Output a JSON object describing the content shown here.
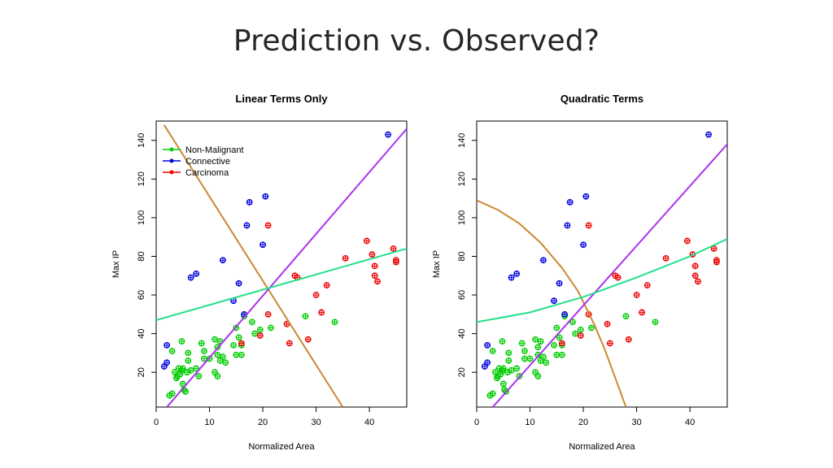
{
  "slide": {
    "title": "Prediction vs. Observed?"
  },
  "chart_data": [
    {
      "type": "scatter",
      "title": "Linear Terms Only",
      "xlabel": "Normalized Area",
      "ylabel": "Max IP",
      "xlim": [
        0,
        47
      ],
      "ylim": [
        2,
        150
      ],
      "x_ticks": [
        0,
        10,
        20,
        30,
        40
      ],
      "y_ticks": [
        20,
        40,
        60,
        80,
        100,
        120,
        140
      ],
      "legend_position": "top-left",
      "grid": false,
      "colors": {
        "Non-Malignant": "#00cc00",
        "Connective": "#0000dd",
        "Carcinoma": "#ee0000"
      },
      "series": [
        {
          "name": "Non-Malignant",
          "color": "#00cc00",
          "points": [
            [
              2.5,
              8
            ],
            [
              3,
              9
            ],
            [
              3.5,
              20
            ],
            [
              3.8,
              17
            ],
            [
              4,
              18
            ],
            [
              4.2,
              22
            ],
            [
              4.5,
              19
            ],
            [
              4.8,
              21
            ],
            [
              5,
              14
            ],
            [
              5.2,
              11
            ],
            [
              5.5,
              10
            ],
            [
              5.8,
              20
            ],
            [
              5,
              22
            ],
            [
              3,
              31
            ],
            [
              4.8,
              36
            ],
            [
              6,
              26
            ],
            [
              6,
              30
            ],
            [
              6.5,
              21
            ],
            [
              7.5,
              22
            ],
            [
              8,
              18
            ],
            [
              8.5,
              35
            ],
            [
              9,
              27
            ],
            [
              9,
              31
            ],
            [
              10,
              27
            ],
            [
              11,
              37
            ],
            [
              11,
              20
            ],
            [
              11.5,
              18
            ],
            [
              11.5,
              33
            ],
            [
              11.5,
              29
            ],
            [
              12,
              26
            ],
            [
              12,
              36
            ],
            [
              12.5,
              28
            ],
            [
              13,
              25
            ],
            [
              14.5,
              34
            ],
            [
              15,
              43
            ],
            [
              15,
              29
            ],
            [
              15.5,
              38
            ],
            [
              16,
              34
            ],
            [
              16,
              29
            ],
            [
              16.5,
              49
            ],
            [
              18,
              46
            ],
            [
              18.5,
              40
            ],
            [
              19.5,
              42
            ],
            [
              21.5,
              43
            ],
            [
              28,
              49
            ],
            [
              33.5,
              46
            ]
          ]
        },
        {
          "name": "Connective",
          "color": "#0000dd",
          "points": [
            [
              1.5,
              23
            ],
            [
              2,
              25
            ],
            [
              2,
              34
            ],
            [
              6.5,
              69
            ],
            [
              7.5,
              71
            ],
            [
              12.5,
              78
            ],
            [
              14.5,
              57
            ],
            [
              15.5,
              66
            ],
            [
              16.5,
              50
            ],
            [
              17,
              96
            ],
            [
              17.5,
              108
            ],
            [
              20,
              86
            ],
            [
              20.5,
              111
            ],
            [
              43.5,
              143
            ]
          ]
        },
        {
          "name": "Carcinoma",
          "color": "#ee0000",
          "points": [
            [
              16,
              35
            ],
            [
              19.5,
              39
            ],
            [
              21,
              50
            ],
            [
              21,
              96
            ],
            [
              24.5,
              45
            ],
            [
              25,
              35
            ],
            [
              26,
              70
            ],
            [
              26.5,
              69
            ],
            [
              28.5,
              37
            ],
            [
              30,
              60
            ],
            [
              31,
              51
            ],
            [
              32,
              65
            ],
            [
              35.5,
              79
            ],
            [
              39.5,
              88
            ],
            [
              40.5,
              81
            ],
            [
              41,
              75
            ],
            [
              41,
              70
            ],
            [
              41.5,
              67
            ],
            [
              44.5,
              84
            ],
            [
              45,
              77
            ],
            [
              45,
              78
            ]
          ]
        }
      ],
      "lines": [
        {
          "color": "#cc8833",
          "points": [
            [
              1.5,
              148
            ],
            [
              35,
              2
            ]
          ]
        },
        {
          "color": "#aa33ee",
          "points": [
            [
              2,
              2
            ],
            [
              47,
              146
            ]
          ]
        },
        {
          "color": "#22e08a",
          "points": [
            [
              0,
              47
            ],
            [
              47,
              84
            ]
          ]
        }
      ]
    },
    {
      "type": "scatter",
      "title": "Quadratic Terms",
      "xlabel": "Normalized Area",
      "ylabel": "Max IP",
      "xlim": [
        0,
        47
      ],
      "ylim": [
        2,
        150
      ],
      "x_ticks": [
        0,
        10,
        20,
        30,
        40
      ],
      "y_ticks": [
        20,
        40,
        60,
        80,
        100,
        120,
        140
      ],
      "legend_position": "none",
      "grid": false,
      "series": [
        {
          "name": "Non-Malignant",
          "color": "#00cc00",
          "points": [
            [
              2.5,
              8
            ],
            [
              3,
              9
            ],
            [
              3.5,
              20
            ],
            [
              3.8,
              17
            ],
            [
              4,
              18
            ],
            [
              4.2,
              22
            ],
            [
              4.5,
              19
            ],
            [
              4.8,
              21
            ],
            [
              5,
              14
            ],
            [
              5.2,
              11
            ],
            [
              5.5,
              10
            ],
            [
              5.8,
              20
            ],
            [
              5,
              22
            ],
            [
              3,
              31
            ],
            [
              4.8,
              36
            ],
            [
              6,
              26
            ],
            [
              6,
              30
            ],
            [
              6.5,
              21
            ],
            [
              7.5,
              22
            ],
            [
              8,
              18
            ],
            [
              8.5,
              35
            ],
            [
              9,
              27
            ],
            [
              9,
              31
            ],
            [
              10,
              27
            ],
            [
              11,
              37
            ],
            [
              11,
              20
            ],
            [
              11.5,
              18
            ],
            [
              11.5,
              33
            ],
            [
              11.5,
              29
            ],
            [
              12,
              26
            ],
            [
              12,
              36
            ],
            [
              12.5,
              28
            ],
            [
              13,
              25
            ],
            [
              14.5,
              34
            ],
            [
              15,
              43
            ],
            [
              15,
              29
            ],
            [
              15.5,
              38
            ],
            [
              16,
              34
            ],
            [
              16,
              29
            ],
            [
              16.5,
              49
            ],
            [
              18,
              46
            ],
            [
              18.5,
              40
            ],
            [
              19.5,
              42
            ],
            [
              21.5,
              43
            ],
            [
              28,
              49
            ],
            [
              33.5,
              46
            ]
          ]
        },
        {
          "name": "Connective",
          "color": "#0000dd",
          "points": [
            [
              1.5,
              23
            ],
            [
              2,
              25
            ],
            [
              2,
              34
            ],
            [
              6.5,
              69
            ],
            [
              7.5,
              71
            ],
            [
              12.5,
              78
            ],
            [
              14.5,
              57
            ],
            [
              15.5,
              66
            ],
            [
              16.5,
              50
            ],
            [
              17,
              96
            ],
            [
              17.5,
              108
            ],
            [
              20,
              86
            ],
            [
              20.5,
              111
            ],
            [
              43.5,
              143
            ]
          ]
        },
        {
          "name": "Carcinoma",
          "color": "#ee0000",
          "points": [
            [
              16,
              35
            ],
            [
              19.5,
              39
            ],
            [
              21,
              50
            ],
            [
              21,
              96
            ],
            [
              24.5,
              45
            ],
            [
              25,
              35
            ],
            [
              26,
              70
            ],
            [
              26.5,
              69
            ],
            [
              28.5,
              37
            ],
            [
              30,
              60
            ],
            [
              31,
              51
            ],
            [
              32,
              65
            ],
            [
              35.5,
              79
            ],
            [
              39.5,
              88
            ],
            [
              40.5,
              81
            ],
            [
              41,
              75
            ],
            [
              41,
              70
            ],
            [
              41.5,
              67
            ],
            [
              44.5,
              84
            ],
            [
              45,
              77
            ],
            [
              45,
              78
            ]
          ]
        }
      ],
      "lines": [
        {
          "color": "#cc8833",
          "points": [
            [
              0,
              109
            ],
            [
              4,
              104
            ],
            [
              8,
              97
            ],
            [
              12,
              87
            ],
            [
              16,
              74
            ],
            [
              19,
              62
            ],
            [
              22,
              45
            ],
            [
              24,
              32
            ],
            [
              26,
              17
            ],
            [
              28,
              2
            ]
          ]
        },
        {
          "color": "#aa33ee",
          "points": [
            [
              3,
              2
            ],
            [
              47,
              138
            ]
          ]
        },
        {
          "color": "#22e08a",
          "points": [
            [
              0,
              46
            ],
            [
              10,
              51
            ],
            [
              20,
              59
            ],
            [
              30,
              69
            ],
            [
              40,
              80
            ],
            [
              47,
              89
            ]
          ]
        }
      ]
    }
  ]
}
